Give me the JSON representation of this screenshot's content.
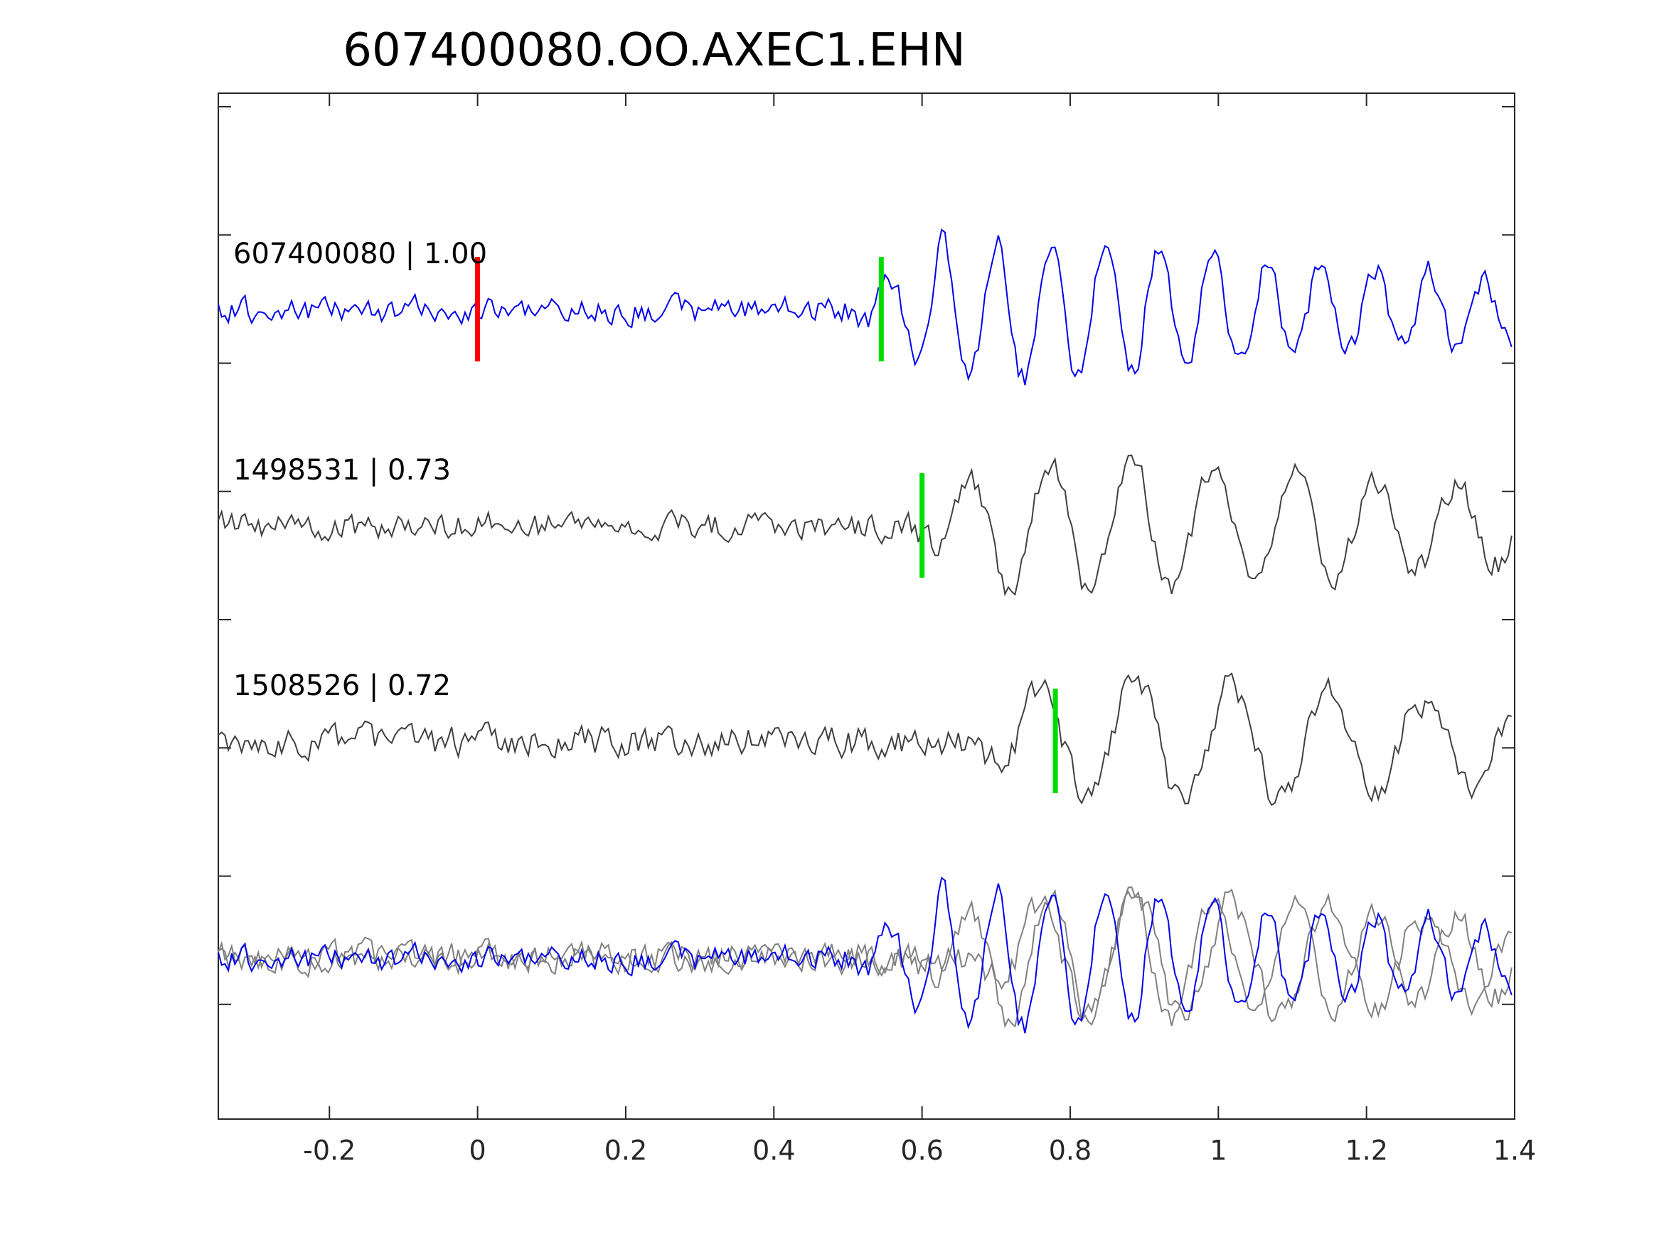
{
  "chart_data": {
    "type": "line",
    "title": "607400080.OO.AXEC1.EHN",
    "xlabel": "",
    "ylabel": "",
    "xlim": [
      -0.35,
      1.4
    ],
    "x_ticks": [
      -0.2,
      0,
      0.2,
      0.4,
      0.6,
      0.8,
      1,
      1.2,
      1.4
    ],
    "x_tick_labels": [
      "-0.2",
      "0",
      "0.2",
      "0.4",
      "0.6",
      "0.8",
      "1",
      "1.2",
      "1.4"
    ],
    "y_tick_count": 9,
    "grid": false,
    "traces": [
      {
        "label": "607400080 | 1.00",
        "event_id": "607400080",
        "correlation": 1.0,
        "color": "#0000ee",
        "reference_pick": 0.0,
        "pick": 0.545
      },
      {
        "label": "1498531 | 0.73",
        "event_id": "1498531",
        "correlation": 0.73,
        "color": "#404040",
        "pick": 0.6
      },
      {
        "label": "1508526 | 0.72",
        "event_id": "1508526",
        "correlation": 0.72,
        "color": "#404040",
        "pick": 0.78
      }
    ],
    "overlay": {
      "template_color": "#0000ee",
      "others_color": "#808080"
    },
    "marker_colors": {
      "reference_pick": "#ff0000",
      "pick": "#00dd00"
    }
  }
}
